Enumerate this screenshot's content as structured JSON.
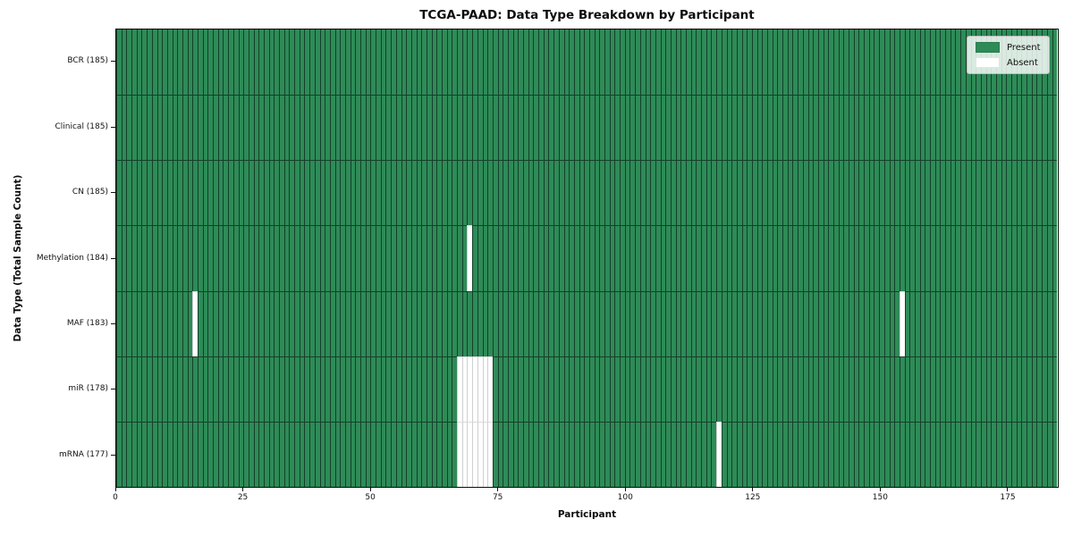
{
  "chart_data": {
    "type": "heatmap",
    "title": "TCGA-PAAD: Data Type Breakdown by Participant",
    "xlabel": "Participant",
    "ylabel": "Data Type (Total Sample Count)",
    "xlim": [
      0,
      185
    ],
    "x_ticks": [
      0,
      25,
      50,
      75,
      100,
      125,
      150,
      175
    ],
    "n_participants": 185,
    "grid": false,
    "legend_position": "upper right",
    "legend": [
      {
        "label": "Present",
        "color": "#2e8b57"
      },
      {
        "label": "Absent",
        "color": "#ffffff"
      }
    ],
    "rows": [
      {
        "label": "BCR (185)",
        "data_type": "BCR",
        "sample_count": 185,
        "absent_participants": []
      },
      {
        "label": "Clinical (185)",
        "data_type": "Clinical",
        "sample_count": 185,
        "absent_participants": []
      },
      {
        "label": "CN (185)",
        "data_type": "CN",
        "sample_count": 185,
        "absent_participants": []
      },
      {
        "label": "Methylation (184)",
        "data_type": "Methylation",
        "sample_count": 184,
        "absent_participants": [
          69
        ]
      },
      {
        "label": "MAF (183)",
        "data_type": "MAF",
        "sample_count": 183,
        "absent_participants": [
          15,
          154
        ]
      },
      {
        "label": "miR (178)",
        "data_type": "miR",
        "sample_count": 178,
        "absent_participants": [
          67,
          68,
          69,
          70,
          71,
          72,
          73
        ]
      },
      {
        "label": "mRNA (177)",
        "data_type": "mRNA",
        "sample_count": 177,
        "absent_participants": [
          67,
          68,
          69,
          70,
          71,
          72,
          73,
          118
        ]
      }
    ],
    "colors": {
      "present": "#2e8b57",
      "absent": "#ffffff",
      "cell_edge": "#14402a",
      "absent_cell_edge": "#cfcfcf",
      "absent_row_divider": "#dadada",
      "axis": "#0a0a0a"
    }
  }
}
